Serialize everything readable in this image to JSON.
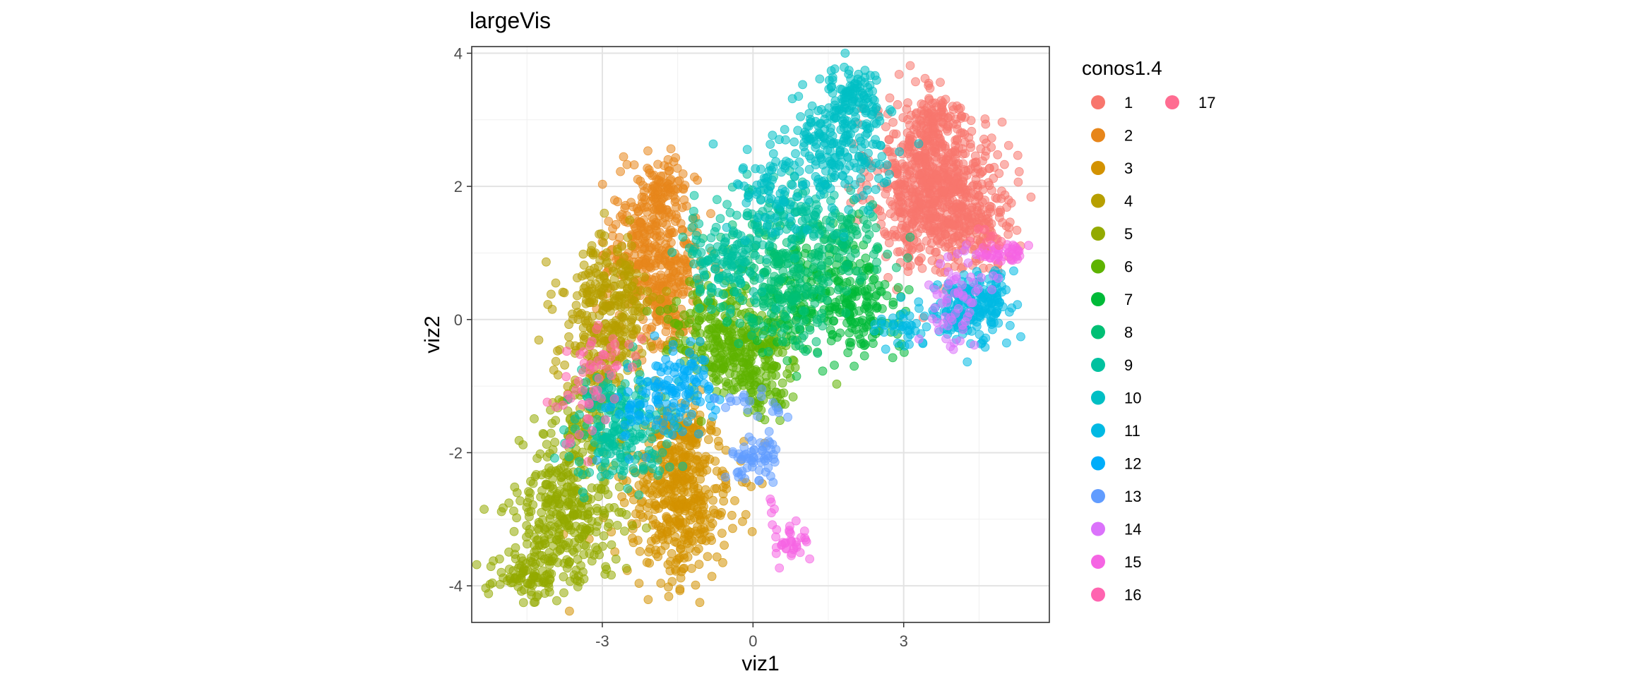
{
  "chart_data": {
    "type": "scatter",
    "title": "largeVis",
    "xlabel": "viz1",
    "ylabel": "viz2",
    "xlim": [
      -5.6,
      5.9
    ],
    "ylim": [
      -4.55,
      4.1
    ],
    "xticks": [
      {
        "value": -3,
        "label": "-3"
      },
      {
        "value": 0,
        "label": "0"
      },
      {
        "value": 3,
        "label": "3"
      }
    ],
    "yticks": [
      {
        "value": -4,
        "label": "-4"
      },
      {
        "value": -2,
        "label": "-2"
      },
      {
        "value": 0,
        "label": "0"
      },
      {
        "value": 2,
        "label": "2"
      },
      {
        "value": 4,
        "label": "4"
      }
    ],
    "grid": true,
    "legend": {
      "title": "conos1.4",
      "position": "right",
      "columns": 2
    },
    "point_opacity": 0.55,
    "series": [
      {
        "name": "1",
        "color": "#F8766D",
        "clusters": [
          {
            "cx": 3.5,
            "cy": 2.0,
            "sx": 0.55,
            "sy": 0.6,
            "n": 620
          },
          {
            "cx": 4.4,
            "cy": 1.7,
            "sx": 0.4,
            "sy": 0.5,
            "n": 200
          },
          {
            "cx": 3.6,
            "cy": 3.0,
            "sx": 0.35,
            "sy": 0.2,
            "n": 80
          }
        ]
      },
      {
        "name": "2",
        "color": "#E7861B",
        "clusters": [
          {
            "cx": -2.0,
            "cy": 1.1,
            "sx": 0.45,
            "sy": 0.55,
            "n": 320
          },
          {
            "cx": -1.7,
            "cy": 0.2,
            "sx": 0.3,
            "sy": 0.4,
            "n": 120
          },
          {
            "cx": -1.8,
            "cy": 1.9,
            "sx": 0.25,
            "sy": 0.2,
            "n": 60
          }
        ]
      },
      {
        "name": "3",
        "color": "#D39200",
        "clusters": [
          {
            "cx": -1.5,
            "cy": -2.7,
            "sx": 0.55,
            "sy": 0.6,
            "n": 420
          },
          {
            "cx": -1.4,
            "cy": -1.8,
            "sx": 0.35,
            "sy": 0.3,
            "n": 80
          }
        ]
      },
      {
        "name": "4",
        "color": "#B79F00",
        "clusters": [
          {
            "cx": -2.9,
            "cy": 0.2,
            "sx": 0.45,
            "sy": 0.5,
            "n": 260
          },
          {
            "cx": -3.1,
            "cy": -0.8,
            "sx": 0.35,
            "sy": 0.35,
            "n": 80
          }
        ]
      },
      {
        "name": "5",
        "color": "#93AA00",
        "clusters": [
          {
            "cx": -3.7,
            "cy": -2.9,
            "sx": 0.5,
            "sy": 0.55,
            "n": 320
          },
          {
            "cx": -4.5,
            "cy": -3.8,
            "sx": 0.35,
            "sy": 0.2,
            "n": 90
          },
          {
            "cx": -3.4,
            "cy": -1.6,
            "sx": 0.3,
            "sy": 0.4,
            "n": 70
          }
        ]
      },
      {
        "name": "6",
        "color": "#5EB300",
        "clusters": [
          {
            "cx": -0.2,
            "cy": -0.5,
            "sx": 0.5,
            "sy": 0.35,
            "n": 260
          },
          {
            "cx": -1.0,
            "cy": 0.0,
            "sx": 0.4,
            "sy": 0.35,
            "n": 100
          },
          {
            "cx": 0.3,
            "cy": -1.2,
            "sx": 0.25,
            "sy": 0.15,
            "n": 30
          }
        ]
      },
      {
        "name": "7",
        "color": "#00BA38",
        "clusters": [
          {
            "cx": 1.4,
            "cy": 0.4,
            "sx": 0.65,
            "sy": 0.45,
            "n": 240
          },
          {
            "cx": 2.4,
            "cy": 0.1,
            "sx": 0.4,
            "sy": 0.3,
            "n": 70
          }
        ]
      },
      {
        "name": "8",
        "color": "#00BF74",
        "clusters": [
          {
            "cx": 0.5,
            "cy": 0.6,
            "sx": 0.6,
            "sy": 0.45,
            "n": 200
          },
          {
            "cx": 1.8,
            "cy": 1.2,
            "sx": 0.5,
            "sy": 0.3,
            "n": 80
          }
        ]
      },
      {
        "name": "9",
        "color": "#00C19F",
        "clusters": [
          {
            "cx": -2.6,
            "cy": -1.6,
            "sx": 0.5,
            "sy": 0.4,
            "n": 210
          },
          {
            "cx": -0.6,
            "cy": 0.9,
            "sx": 0.45,
            "sy": 0.35,
            "n": 120
          },
          {
            "cx": 0.8,
            "cy": 1.6,
            "sx": 0.6,
            "sy": 0.25,
            "n": 110
          }
        ]
      },
      {
        "name": "10",
        "color": "#00BFC4",
        "clusters": [
          {
            "cx": 1.6,
            "cy": 2.6,
            "sx": 0.55,
            "sy": 0.4,
            "n": 220
          },
          {
            "cx": 2.0,
            "cy": 3.4,
            "sx": 0.25,
            "sy": 0.22,
            "n": 90
          },
          {
            "cx": 0.4,
            "cy": 1.9,
            "sx": 0.4,
            "sy": 0.3,
            "n": 60
          }
        ]
      },
      {
        "name": "11",
        "color": "#00B9E3",
        "clusters": [
          {
            "cx": 4.3,
            "cy": 0.1,
            "sx": 0.35,
            "sy": 0.25,
            "n": 150
          },
          {
            "cx": 4.7,
            "cy": 0.4,
            "sx": 0.2,
            "sy": 0.25,
            "n": 50
          },
          {
            "cx": 3.0,
            "cy": -0.1,
            "sx": 0.4,
            "sy": 0.15,
            "n": 40
          }
        ]
      },
      {
        "name": "12",
        "color": "#00ADFA",
        "clusters": [
          {
            "cx": -1.3,
            "cy": -1.0,
            "sx": 0.35,
            "sy": 0.3,
            "n": 90
          },
          {
            "cx": -2.2,
            "cy": -1.4,
            "sx": 0.35,
            "sy": 0.3,
            "n": 50
          }
        ]
      },
      {
        "name": "13",
        "color": "#619CFF",
        "clusters": [
          {
            "cx": 0.05,
            "cy": -2.05,
            "sx": 0.25,
            "sy": 0.2,
            "n": 60
          },
          {
            "cx": -0.3,
            "cy": -1.2,
            "sx": 0.25,
            "sy": 0.1,
            "n": 12
          },
          {
            "cx": 0.5,
            "cy": -1.4,
            "sx": 0.12,
            "sy": 0.08,
            "n": 6
          }
        ]
      },
      {
        "name": "14",
        "color": "#DB72FB",
        "clusters": [
          {
            "cx": 4.1,
            "cy": 0.3,
            "sx": 0.3,
            "sy": 0.35,
            "n": 60
          }
        ]
      },
      {
        "name": "15",
        "color": "#F564E3",
        "clusters": [
          {
            "cx": 0.75,
            "cy": -3.35,
            "sx": 0.18,
            "sy": 0.15,
            "n": 35
          },
          {
            "cx": 5.0,
            "cy": 1.0,
            "sx": 0.25,
            "sy": 0.08,
            "n": 40
          },
          {
            "cx": 0.4,
            "cy": -2.9,
            "sx": 0.08,
            "sy": 0.12,
            "n": 4
          }
        ]
      },
      {
        "name": "16",
        "color": "#FF64B0",
        "clusters": [
          {
            "cx": -3.2,
            "cy": -0.8,
            "sx": 0.3,
            "sy": 0.3,
            "n": 30
          },
          {
            "cx": -3.6,
            "cy": -1.6,
            "sx": 0.3,
            "sy": 0.3,
            "n": 14
          }
        ]
      },
      {
        "name": "17",
        "color": "#FF6C91",
        "clusters": [
          {
            "cx": -2.8,
            "cy": -0.5,
            "sx": 0.3,
            "sy": 0.3,
            "n": 12
          },
          {
            "cx": 4.6,
            "cy": 1.2,
            "sx": 0.2,
            "sy": 0.1,
            "n": 8
          }
        ]
      }
    ]
  }
}
